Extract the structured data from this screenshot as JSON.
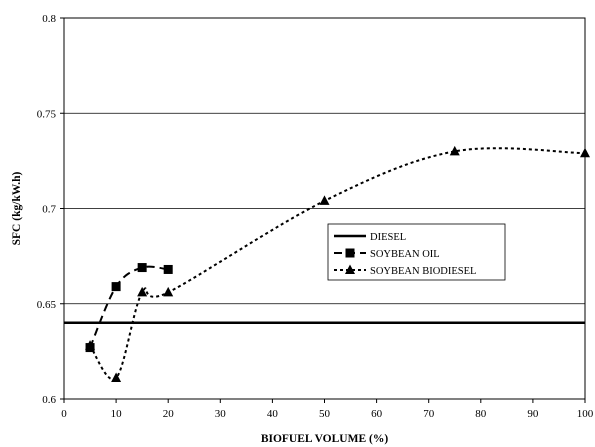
{
  "chart_data": {
    "type": "line",
    "title": "",
    "xlabel": "BIOFUEL VOLUME (%)",
    "ylabel": "SFC (kg/kW.h)",
    "xlim": [
      0,
      100
    ],
    "ylim": [
      0.6,
      0.8
    ],
    "x_ticks": [
      0,
      10,
      20,
      30,
      40,
      50,
      60,
      70,
      80,
      90,
      100
    ],
    "y_ticks": [
      0.6,
      0.65,
      0.7,
      0.75,
      0.8
    ],
    "x_tick_labels": [
      "0",
      "10",
      "20",
      "30",
      "40",
      "50",
      "60",
      "70",
      "80",
      "90",
      "100"
    ],
    "y_tick_labels": [
      "0.6",
      "0.65",
      "0.7",
      "0.75",
      "0.8"
    ],
    "grid": "horizontal",
    "legend_position": "center-right",
    "series": [
      {
        "name": "DIESEL",
        "style": "solid",
        "marker": "none",
        "color": "#000000",
        "x": [
          0,
          100
        ],
        "y": [
          0.64,
          0.64
        ]
      },
      {
        "name": "SOYBEAN OIL",
        "style": "dashed",
        "marker": "square",
        "color": "#000000",
        "x": [
          5,
          10,
          15,
          20
        ],
        "y": [
          0.627,
          0.659,
          0.669,
          0.668
        ]
      },
      {
        "name": "SOYBEAN BIODIESEL",
        "style": "dotted",
        "marker": "triangle",
        "color": "#000000",
        "x": [
          5,
          10,
          15,
          20,
          50,
          75,
          100
        ],
        "y": [
          0.628,
          0.611,
          0.656,
          0.656,
          0.704,
          0.73,
          0.729
        ]
      }
    ]
  }
}
